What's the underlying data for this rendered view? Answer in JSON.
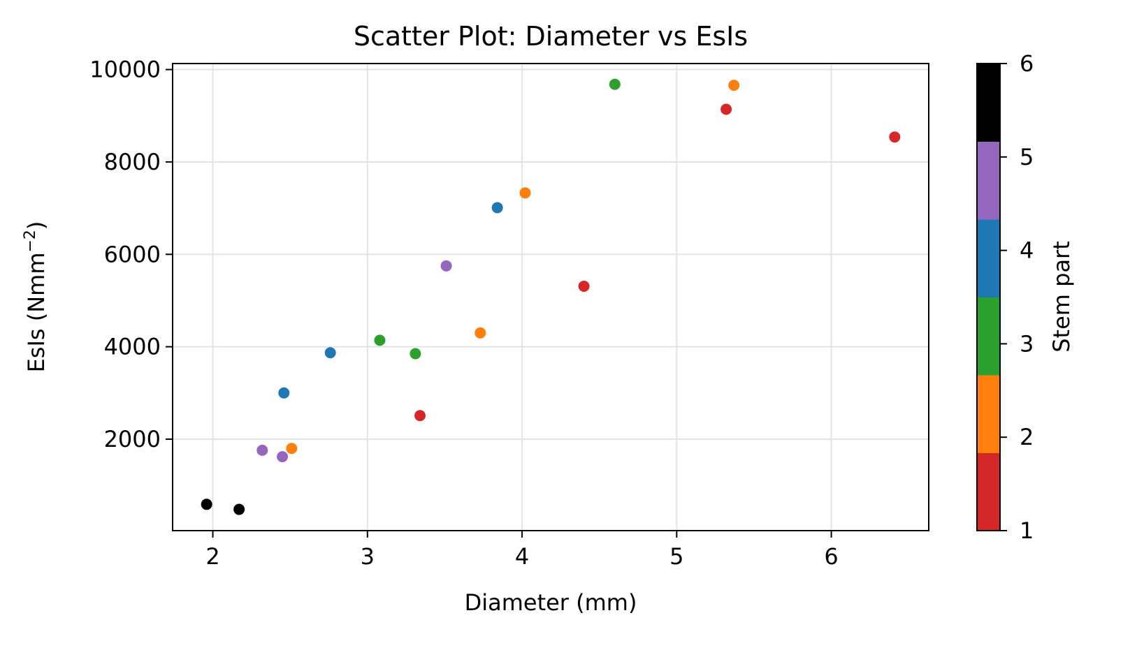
{
  "chart_data": {
    "type": "scatter",
    "title": "Scatter Plot: Diameter vs EsIs",
    "xlabel": "Diameter (mm)",
    "ylabel_main": "EsIs (Nmm",
    "ylabel_sup": "−2",
    "ylabel_close": ")",
    "xlim": [
      1.74,
      6.63
    ],
    "ylim": [
      20,
      10130
    ],
    "xticks": [
      2,
      3,
      4,
      5,
      6
    ],
    "yticks": [
      2000,
      4000,
      6000,
      8000,
      10000
    ],
    "grid": true,
    "colorbar": {
      "label": "Stem part",
      "range": [
        1,
        6
      ],
      "ticks": [
        1,
        2,
        3,
        4,
        5,
        6
      ],
      "colors": [
        "#d62728",
        "#ff7f0e",
        "#2ca02c",
        "#1f77b4",
        "#9467bd",
        "#000000"
      ]
    },
    "points": [
      {
        "x": 1.96,
        "y": 590,
        "c": 6
      },
      {
        "x": 2.17,
        "y": 480,
        "c": 6
      },
      {
        "x": 2.32,
        "y": 1760,
        "c": 5
      },
      {
        "x": 2.45,
        "y": 1620,
        "c": 5
      },
      {
        "x": 2.51,
        "y": 1800,
        "c": 2
      },
      {
        "x": 2.46,
        "y": 3000,
        "c": 4
      },
      {
        "x": 2.76,
        "y": 3870,
        "c": 4
      },
      {
        "x": 3.08,
        "y": 4140,
        "c": 3
      },
      {
        "x": 3.31,
        "y": 3850,
        "c": 3
      },
      {
        "x": 3.34,
        "y": 2510,
        "c": 1
      },
      {
        "x": 3.51,
        "y": 5750,
        "c": 5
      },
      {
        "x": 3.73,
        "y": 4300,
        "c": 2
      },
      {
        "x": 3.84,
        "y": 7010,
        "c": 4
      },
      {
        "x": 4.02,
        "y": 7330,
        "c": 2
      },
      {
        "x": 4.4,
        "y": 5310,
        "c": 1
      },
      {
        "x": 4.6,
        "y": 9680,
        "c": 3
      },
      {
        "x": 5.32,
        "y": 9140,
        "c": 1
      },
      {
        "x": 5.37,
        "y": 9660,
        "c": 2
      },
      {
        "x": 6.41,
        "y": 8540,
        "c": 1
      }
    ]
  }
}
